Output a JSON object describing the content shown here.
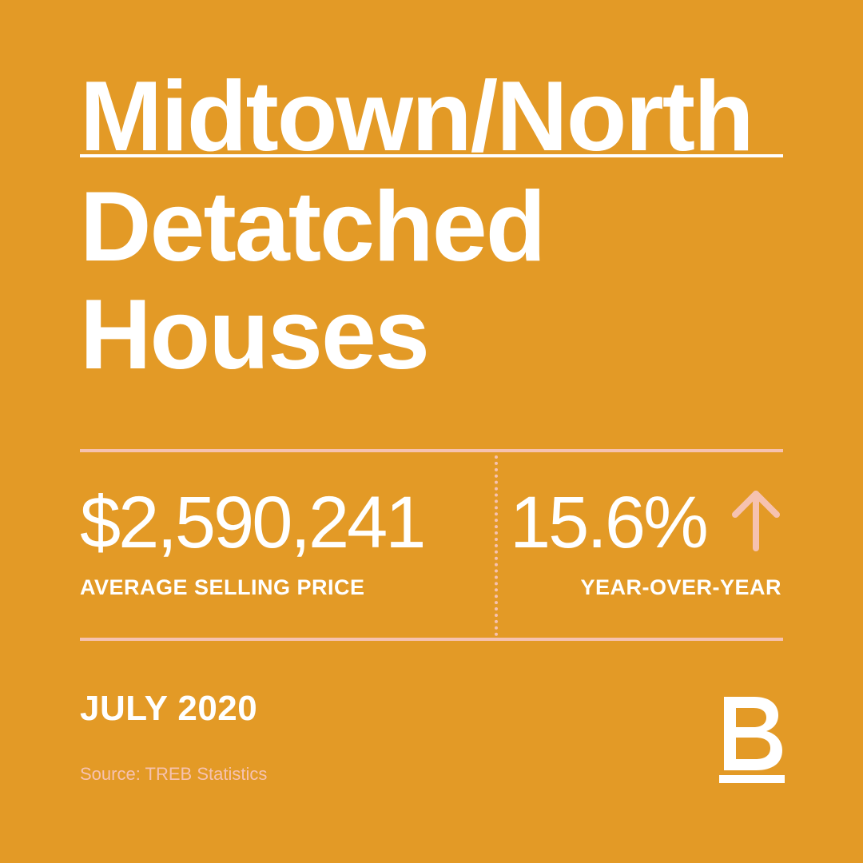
{
  "title": {
    "line1": "Midtown/North",
    "line2": "Detatched",
    "line3": "Houses"
  },
  "stats": {
    "price_value": "$2,590,241",
    "price_label": "AVERAGE SELLING PRICE",
    "change_value": "15.6%",
    "change_direction": "up-arrow-icon",
    "change_label": "YEAR-OVER-YEAR"
  },
  "date": "JULY 2020",
  "source": "Source: TREB Statistics",
  "logo": {
    "letter": "B"
  },
  "colors": {
    "background": "#E39A26",
    "text": "#FFFFFF",
    "accent": "#F6C2B0"
  }
}
